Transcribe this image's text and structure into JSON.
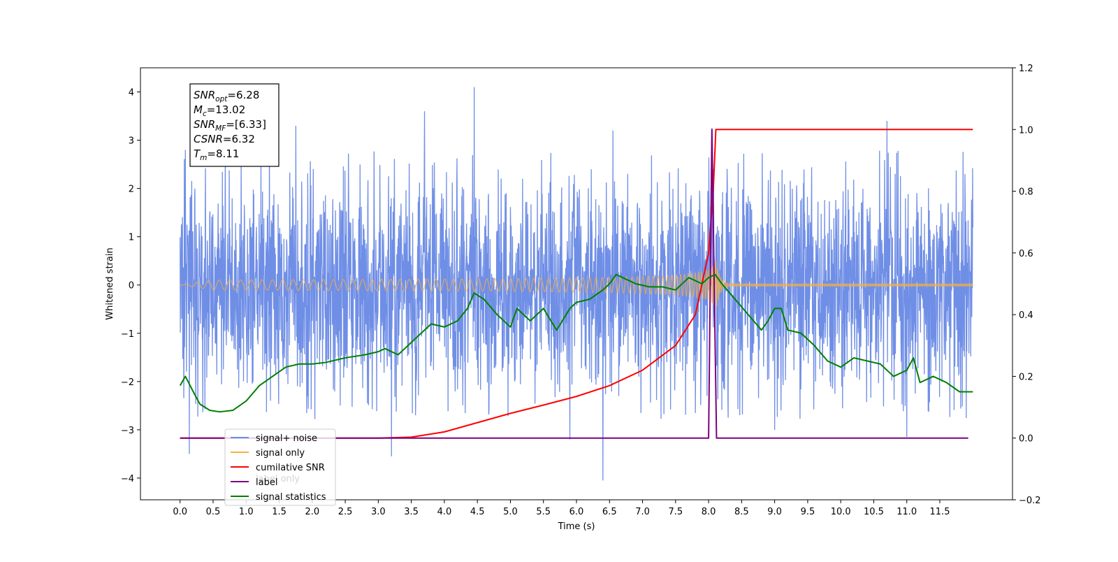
{
  "chart_data": {
    "type": "line",
    "xlabel": "Time (s)",
    "ylabel": "Whitened strain",
    "xlim": [
      -0.6,
      12.6
    ],
    "ylim_left": [
      -4.45,
      4.5
    ],
    "ylim_right": [
      -0.2,
      1.2
    ],
    "x_ticks": [
      "0.0",
      "0.5",
      "1.0",
      "1.5",
      "2.0",
      "2.5",
      "3.0",
      "3.5",
      "4.0",
      "4.5",
      "5.0",
      "5.5",
      "6.0",
      "6.5",
      "7.0",
      "7.5",
      "8.0",
      "8.5",
      "9.0",
      "9.5",
      "10.0",
      "10.5",
      "11.0",
      "11.5"
    ],
    "y_ticks_left": [
      "4",
      "3",
      "2",
      "1",
      "0",
      "−1",
      "−2",
      "−3",
      "−4"
    ],
    "y_ticks_right": [
      "1.2",
      "1.0",
      "0.8",
      "0.6",
      "0.4",
      "0.2",
      "0.0",
      "−0.2"
    ],
    "annotation": {
      "lines": [
        {
          "sym": "SNR",
          "sub": "opt",
          "val": "=6.28"
        },
        {
          "sym": "M",
          "sub": "c",
          "val": "=13.02"
        },
        {
          "sym": "SNR",
          "sub": "MF",
          "val": "=[6.33]"
        },
        {
          "sym": "CSNR",
          "sub": "",
          "val": "=6.32"
        },
        {
          "sym": "T",
          "sub": "m",
          "val": "=8.11"
        }
      ]
    },
    "legend": {
      "position": "lower left",
      "entries": [
        {
          "label": "signal+ noise",
          "color": "#6f8ee6"
        },
        {
          "label": "signal only",
          "color": "#f5b041"
        },
        {
          "label": "cumilative SNR",
          "color": "#ff0000"
        },
        {
          "label": "label",
          "color": "#7b0080"
        },
        {
          "label": "signal statistics",
          "color": "#008000"
        }
      ],
      "hidden_entry": "label only"
    },
    "series": [
      {
        "name": "signal+ noise",
        "axis": "left",
        "kind": "noise",
        "color": "#6f8ee6",
        "x_range": [
          0.0,
          12.0
        ],
        "typical_range": [
          -2.2,
          2.2
        ],
        "notable_peaks": [
          [
            0.08,
            2.8
          ],
          [
            0.14,
            -3.5
          ],
          [
            1.35,
            3.3
          ],
          [
            1.75,
            3.3
          ],
          [
            3.2,
            -3.55
          ],
          [
            3.7,
            3.6
          ],
          [
            4.45,
            4.1
          ],
          [
            5.9,
            -3.2
          ],
          [
            6.4,
            -4.05
          ],
          [
            6.55,
            3.2
          ],
          [
            8.05,
            3.25
          ],
          [
            9.0,
            -3.0
          ],
          [
            10.7,
            3.4
          ],
          [
            11.0,
            -3.15
          ]
        ]
      },
      {
        "name": "signal only",
        "axis": "left",
        "kind": "chirp",
        "color": "#f5b041",
        "x_range": [
          0.0,
          12.0
        ],
        "merger_time": 8.11,
        "peak_amplitude": 0.55
      },
      {
        "name": "cumilative SNR",
        "axis": "right",
        "color": "#ff0000",
        "points": [
          [
            0.0,
            0.0
          ],
          [
            3.0,
            0.0
          ],
          [
            3.5,
            0.003
          ],
          [
            4.0,
            0.02
          ],
          [
            4.5,
            0.05
          ],
          [
            5.0,
            0.08
          ],
          [
            5.5,
            0.107
          ],
          [
            6.0,
            0.135
          ],
          [
            6.5,
            0.17
          ],
          [
            7.0,
            0.22
          ],
          [
            7.5,
            0.3
          ],
          [
            7.8,
            0.4
          ],
          [
            8.0,
            0.6
          ],
          [
            8.07,
            0.8
          ],
          [
            8.11,
            1.0
          ],
          [
            12.0,
            1.0
          ]
        ]
      },
      {
        "name": "label",
        "axis": "right",
        "color": "#7b0080",
        "points": [
          [
            0.0,
            0.0
          ],
          [
            8.0,
            0.0
          ],
          [
            8.05,
            1.0
          ],
          [
            8.12,
            0.0
          ],
          [
            11.93,
            0.0
          ]
        ]
      },
      {
        "name": "signal statistics",
        "axis": "right",
        "color": "#008000",
        "points": [
          [
            0.0,
            0.17
          ],
          [
            0.08,
            0.2
          ],
          [
            0.2,
            0.15
          ],
          [
            0.3,
            0.11
          ],
          [
            0.45,
            0.09
          ],
          [
            0.6,
            0.085
          ],
          [
            0.8,
            0.09
          ],
          [
            1.0,
            0.12
          ],
          [
            1.2,
            0.17
          ],
          [
            1.4,
            0.2
          ],
          [
            1.6,
            0.23
          ],
          [
            1.8,
            0.24
          ],
          [
            2.0,
            0.24
          ],
          [
            2.2,
            0.245
          ],
          [
            2.5,
            0.26
          ],
          [
            2.8,
            0.27
          ],
          [
            3.0,
            0.28
          ],
          [
            3.1,
            0.29
          ],
          [
            3.3,
            0.27
          ],
          [
            3.4,
            0.29
          ],
          [
            3.6,
            0.33
          ],
          [
            3.8,
            0.37
          ],
          [
            4.0,
            0.36
          ],
          [
            4.2,
            0.38
          ],
          [
            4.35,
            0.42
          ],
          [
            4.45,
            0.47
          ],
          [
            4.6,
            0.45
          ],
          [
            4.8,
            0.4
          ],
          [
            5.0,
            0.36
          ],
          [
            5.1,
            0.42
          ],
          [
            5.3,
            0.38
          ],
          [
            5.5,
            0.42
          ],
          [
            5.7,
            0.35
          ],
          [
            5.9,
            0.42
          ],
          [
            6.0,
            0.44
          ],
          [
            6.2,
            0.45
          ],
          [
            6.4,
            0.48
          ],
          [
            6.5,
            0.5
          ],
          [
            6.6,
            0.53
          ],
          [
            6.7,
            0.52
          ],
          [
            6.9,
            0.5
          ],
          [
            7.1,
            0.49
          ],
          [
            7.3,
            0.49
          ],
          [
            7.5,
            0.48
          ],
          [
            7.7,
            0.52
          ],
          [
            7.9,
            0.5
          ],
          [
            8.0,
            0.52
          ],
          [
            8.1,
            0.53
          ],
          [
            8.2,
            0.5
          ],
          [
            8.4,
            0.45
          ],
          [
            8.6,
            0.4
          ],
          [
            8.8,
            0.35
          ],
          [
            8.9,
            0.38
          ],
          [
            9.0,
            0.42
          ],
          [
            9.1,
            0.42
          ],
          [
            9.2,
            0.35
          ],
          [
            9.4,
            0.34
          ],
          [
            9.6,
            0.3
          ],
          [
            9.8,
            0.25
          ],
          [
            10.0,
            0.23
          ],
          [
            10.2,
            0.26
          ],
          [
            10.4,
            0.25
          ],
          [
            10.6,
            0.24
          ],
          [
            10.8,
            0.2
          ],
          [
            11.0,
            0.22
          ],
          [
            11.1,
            0.26
          ],
          [
            11.2,
            0.18
          ],
          [
            11.4,
            0.2
          ],
          [
            11.6,
            0.18
          ],
          [
            11.8,
            0.15
          ],
          [
            12.0,
            0.15
          ]
        ]
      }
    ]
  }
}
